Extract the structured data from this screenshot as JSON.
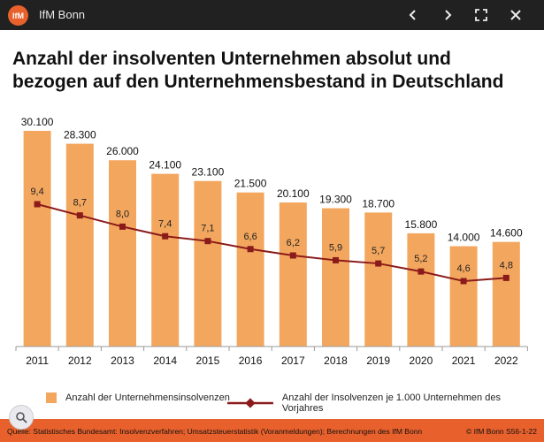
{
  "viewer": {
    "app_title": "IfM Bonn",
    "logo_text": "IfM"
  },
  "heading": {
    "line1": "Anzahl der insolventen Unternehmen absolut und",
    "line2": "bezogen auf den Unternehmensbestand in Deutschland"
  },
  "chart_data": {
    "type": "bar",
    "title": "Anzahl der insolventen Unternehmen absolut und bezogen auf den Unternehmensbestand in Deutschland",
    "categories": [
      "2011",
      "2012",
      "2013",
      "2014",
      "2015",
      "2016",
      "2017",
      "2018",
      "2019",
      "2020",
      "2021",
      "2022"
    ],
    "series": [
      {
        "name": "Anzahl der Unternehmensinsolvenzen",
        "type": "bar",
        "values": [
          30100,
          28300,
          26000,
          24100,
          23100,
          21500,
          20100,
          19300,
          18700,
          15800,
          14000,
          14600
        ],
        "labels": [
          "30.100",
          "28.300",
          "26.000",
          "24.100",
          "23.100",
          "21.500",
          "20.100",
          "19.300",
          "18.700",
          "15.800",
          "14.000",
          "14.600"
        ],
        "color": "#f3a75e"
      },
      {
        "name": "Anzahl der Insolvenzen je 1.000 Unternehmen des Vorjahres",
        "type": "line",
        "values": [
          9.4,
          8.7,
          8.0,
          7.4,
          7.1,
          6.6,
          6.2,
          5.9,
          5.7,
          5.2,
          4.6,
          4.8
        ],
        "labels": [
          "9,4",
          "8,7",
          "8,0",
          "7,4",
          "7,1",
          "6,6",
          "6,2",
          "5,9",
          "5,7",
          "5,2",
          "4,6",
          "4,8"
        ],
        "color": "#8b1a1a"
      }
    ],
    "ylim_bars": [
      0,
      32000
    ],
    "ylim_line": [
      0,
      15
    ],
    "legend_position": "bottom",
    "grid": false
  },
  "footer": {
    "source": "Quelle:  Statistisches Bundesamt: Insolvenzverfahren;  Umsatzsteuerstatistik (Voranmeldungen);  Berechnungen des IfM Bonn",
    "copyright": "© IfM Bonn   S56-1-22"
  },
  "colors": {
    "bar": "#f3a75e",
    "line": "#8b1a1a",
    "footer": "#e8612c",
    "topbar": "#212121"
  },
  "icons": {
    "back": "chevron-left-icon",
    "forward": "chevron-right-icon",
    "expand": "expand-icon",
    "close": "close-icon",
    "lens": "search-icon"
  }
}
